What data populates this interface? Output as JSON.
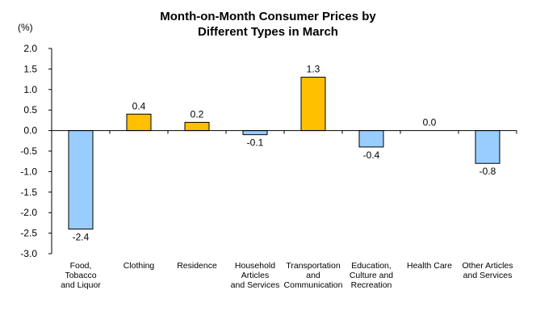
{
  "chart_data": {
    "type": "bar",
    "title_line1": "Month-on-Month Consumer Prices by",
    "title_line2": "Different Types in March",
    "unit_label": "(%)",
    "categories": [
      [
        "Food,",
        "Tobacco",
        "and Liquor"
      ],
      [
        "Clothing"
      ],
      [
        "Residence"
      ],
      [
        "Household",
        "Articles",
        "and Services"
      ],
      [
        "Transportation",
        "and",
        "Communication"
      ],
      [
        "Education,",
        "Culture and",
        "Recreation"
      ],
      [
        "Health Care"
      ],
      [
        "Other Articles",
        "and Services"
      ]
    ],
    "values": [
      -2.4,
      0.4,
      0.2,
      -0.1,
      1.3,
      -0.4,
      0.0,
      -0.8
    ],
    "value_labels": [
      "-2.4",
      "0.4",
      "0.2",
      "-0.1",
      "1.3",
      "-0.4",
      "0.0",
      "-0.8"
    ],
    "ylim": [
      -3.0,
      2.0
    ],
    "ytick_step": 0.5,
    "ytick_labels": [
      "2.0",
      "1.5",
      "1.0",
      "0.5",
      "0.0",
      "-0.5",
      "-1.0",
      "-1.5",
      "-2.0",
      "-2.5",
      "-3.0"
    ],
    "colors": {
      "positive": "#FFC000",
      "negative": "#99CCFF",
      "border": "#000000"
    },
    "grid": false,
    "legend": "none"
  }
}
